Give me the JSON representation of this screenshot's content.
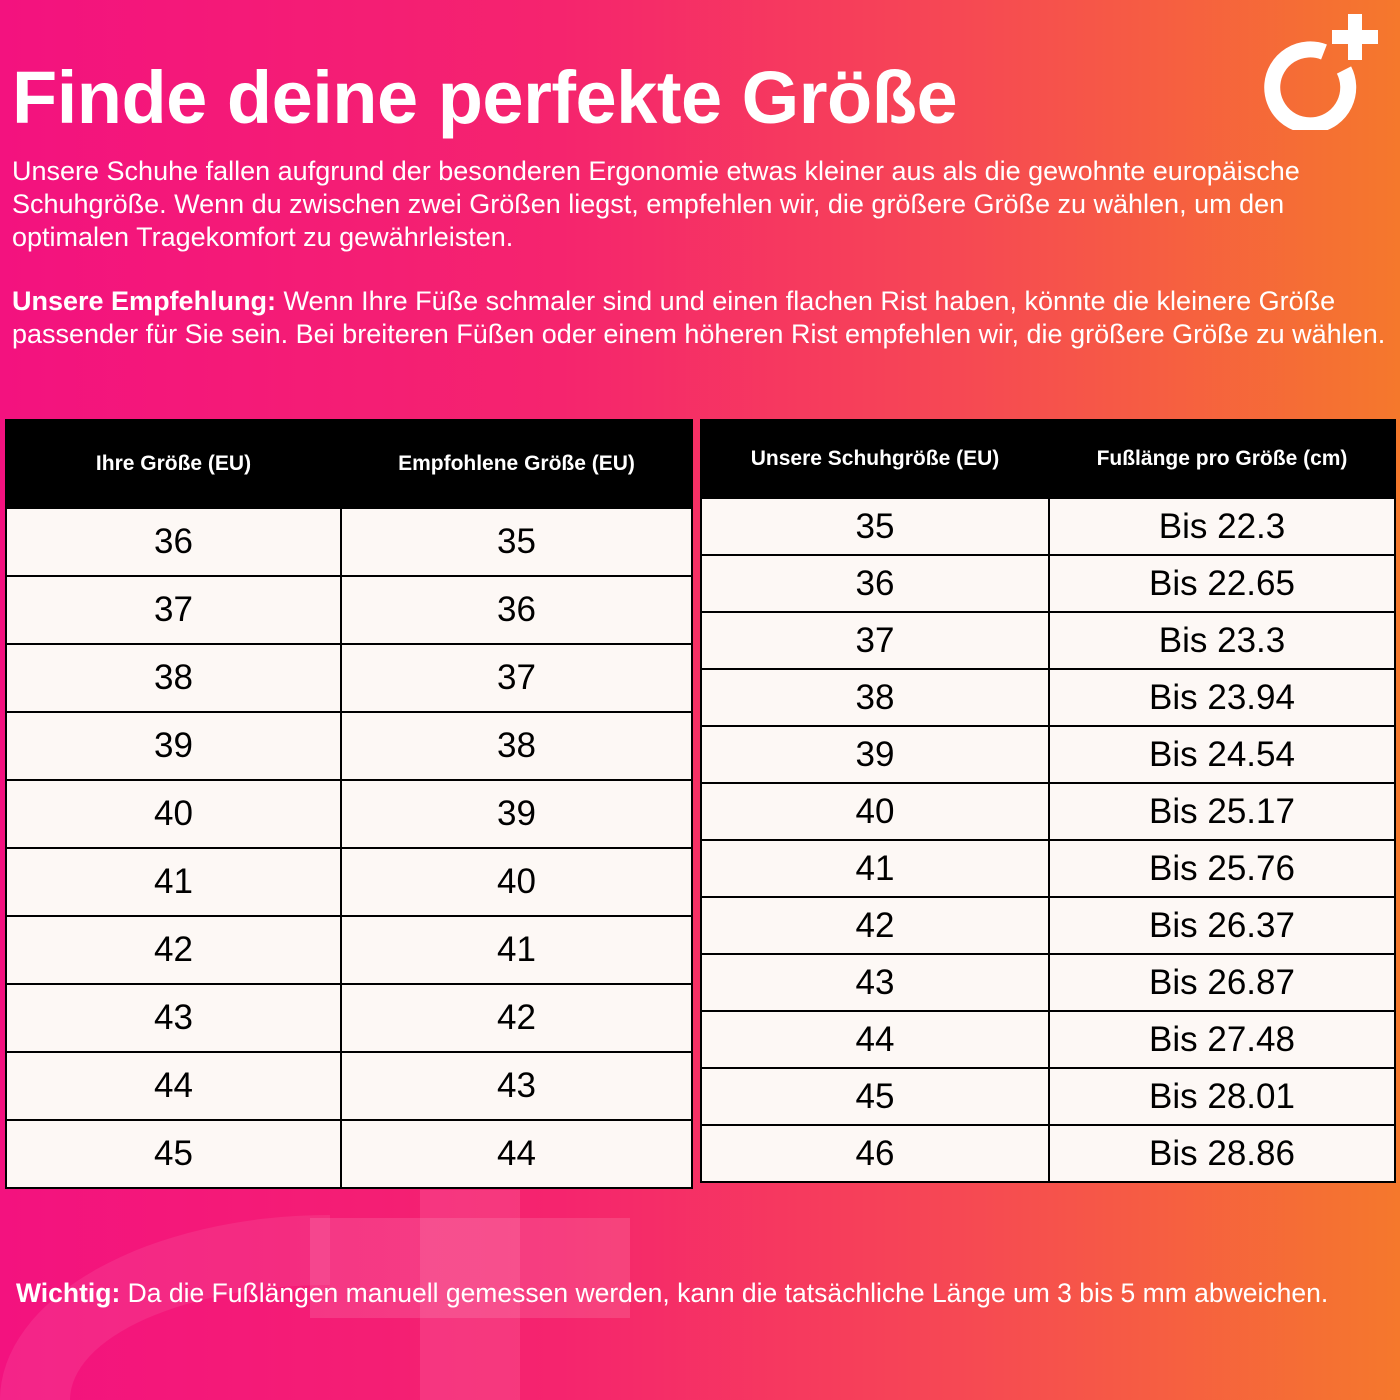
{
  "title": "Finde deine perfekte Größe",
  "intro": "Unsere Schuhe fallen aufgrund der besonderen Ergonomie etwas kleiner aus als die gewohnte europäische Schuhgröße. Wenn du zwischen zwei Größen liegst, empfehlen wir, die größere Größe zu wählen, um den optimalen Tragekomfort zu gewährleisten.",
  "recommendation": {
    "label": "Unsere Empfehlung:",
    "text": " Wenn Ihre Füße schmaler sind und einen flachen Rist haben, könnte die kleinere Größe passender für Sie sein. Bei breiteren Füßen oder einem höheren Rist empfehlen wir, die größere Größe zu wählen."
  },
  "logo": "brand-logo-circle-plus",
  "size_table": {
    "headers": [
      "Ihre Größe (EU)",
      "Empfohlene Größe (EU)"
    ],
    "rows": [
      [
        "36",
        "35"
      ],
      [
        "37",
        "36"
      ],
      [
        "38",
        "37"
      ],
      [
        "39",
        "38"
      ],
      [
        "40",
        "39"
      ],
      [
        "41",
        "40"
      ],
      [
        "42",
        "41"
      ],
      [
        "43",
        "42"
      ],
      [
        "44",
        "43"
      ],
      [
        "45",
        "44"
      ]
    ]
  },
  "length_table": {
    "headers": [
      "Unsere Schuhgröße (EU)",
      "Fußlänge pro Größe (cm)"
    ],
    "rows": [
      [
        "35",
        "Bis 22.3"
      ],
      [
        "36",
        "Bis 22.65"
      ],
      [
        "37",
        "Bis 23.3"
      ],
      [
        "38",
        "Bis 23.94"
      ],
      [
        "39",
        "Bis 24.54"
      ],
      [
        "40",
        "Bis 25.17"
      ],
      [
        "41",
        "Bis 25.76"
      ],
      [
        "42",
        "Bis 26.37"
      ],
      [
        "43",
        "Bis 26.87"
      ],
      [
        "44",
        "Bis 27.48"
      ],
      [
        "45",
        "Bis 28.01"
      ],
      [
        "46",
        "Bis 28.86"
      ]
    ]
  },
  "note": {
    "label": "Wichtig:",
    "text": " Da die Fußlängen manuell gemessen werden, kann die tatsächliche Länge um 3 bis 5 mm abweichen."
  },
  "colors": {
    "gradient_start": "#f3127f",
    "gradient_end": "#f5782c",
    "table_bg": "#fdf8f5",
    "header_bg": "#000000"
  }
}
